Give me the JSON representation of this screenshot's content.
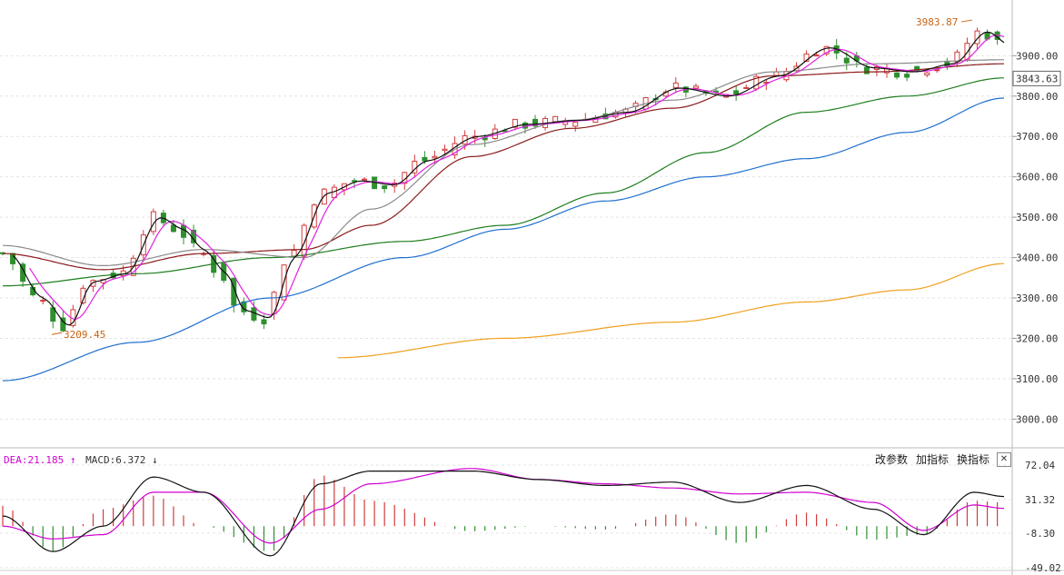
{
  "main": {
    "ylim": [
      2940,
      4020
    ],
    "yticks": [
      "3900.00",
      "3800.00",
      "3700.00",
      "3600.00",
      "3500.00",
      "3400.00",
      "3300.00",
      "3200.00",
      "3100.00",
      "3000.00"
    ],
    "ytick_values": [
      3900,
      3800,
      3700,
      3600,
      3500,
      3400,
      3300,
      3200,
      3100,
      3000
    ],
    "last_price": "3843.63",
    "high_label": "3983.87",
    "low_label": "3209.45"
  },
  "indicator": {
    "dea_label": "DEA:21.185",
    "dea_arrow": "↑",
    "macd_label": "MACD:6.372",
    "macd_arrow": "↓",
    "buttons": [
      "改参数",
      "加指标",
      "换指标"
    ],
    "close_symbol": "✕",
    "yticks": [
      "72.04",
      "31.32",
      "-8.30",
      "-49.02"
    ],
    "ytick_values": [
      72.04,
      31.32,
      -8.3,
      -49.02
    ]
  },
  "colors": {
    "up": "#d23c3c",
    "down": "#2f8f2f",
    "ma5": "#111111",
    "ma10": "#e020e0",
    "ma20": "#8a8a8a",
    "ma30": "#8b1a1a",
    "ma60": "#1e7e1e",
    "ma120": "#1f6fcf",
    "ma250": "#f0a020",
    "annotation": "#c86414",
    "dea": "#d000d0",
    "macd_text": "#333333"
  },
  "chart_data": {
    "type": "candlestick",
    "title": "",
    "y_axis_range": [
      2940,
      4020
    ],
    "macd_axis_range": [
      -49.02,
      72.04
    ],
    "key_levels": {
      "high": 3983.87,
      "low": 3209.45,
      "last": 3843.63
    },
    "ma_anchors": {
      "ma60": [
        [
          0,
          3330
        ],
        [
          40,
          3360
        ],
        [
          80,
          3400
        ],
        [
          120,
          3440
        ],
        [
          150,
          3480
        ],
        [
          180,
          3560
        ],
        [
          210,
          3660
        ],
        [
          240,
          3760
        ],
        [
          270,
          3800
        ],
        [
          299,
          3845
        ]
      ],
      "ma120": [
        [
          0,
          3095
        ],
        [
          40,
          3190
        ],
        [
          80,
          3300
        ],
        [
          120,
          3400
        ],
        [
          150,
          3470
        ],
        [
          180,
          3540
        ],
        [
          210,
          3600
        ],
        [
          240,
          3645
        ],
        [
          270,
          3710
        ],
        [
          299,
          3795
        ]
      ],
      "ma250": [
        [
          100,
          3152
        ],
        [
          150,
          3200
        ],
        [
          200,
          3240
        ],
        [
          240,
          3290
        ],
        [
          270,
          3320
        ],
        [
          299,
          3385
        ]
      ],
      "ma20": [
        [
          0,
          3430
        ],
        [
          30,
          3380
        ],
        [
          60,
          3420
        ],
        [
          90,
          3400
        ],
        [
          110,
          3520
        ],
        [
          140,
          3680
        ],
        [
          170,
          3740
        ],
        [
          200,
          3790
        ],
        [
          230,
          3860
        ],
        [
          260,
          3880
        ],
        [
          299,
          3890
        ]
      ],
      "ma30": [
        [
          0,
          3410
        ],
        [
          30,
          3370
        ],
        [
          60,
          3410
        ],
        [
          90,
          3420
        ],
        [
          110,
          3480
        ],
        [
          140,
          3650
        ],
        [
          170,
          3720
        ],
        [
          200,
          3770
        ],
        [
          230,
          3850
        ],
        [
          260,
          3860
        ],
        [
          299,
          3880
        ]
      ]
    },
    "macd_anchors": {
      "dif": [
        [
          0,
          12
        ],
        [
          15,
          -30
        ],
        [
          30,
          0
        ],
        [
          45,
          58
        ],
        [
          60,
          40
        ],
        [
          80,
          -35
        ],
        [
          95,
          50
        ],
        [
          110,
          65
        ],
        [
          140,
          65
        ],
        [
          160,
          55
        ],
        [
          180,
          48
        ],
        [
          200,
          52
        ],
        [
          220,
          28
        ],
        [
          240,
          48
        ],
        [
          260,
          20
        ],
        [
          275,
          -10
        ],
        [
          290,
          40
        ],
        [
          299,
          35
        ]
      ],
      "dea": [
        [
          0,
          0
        ],
        [
          15,
          -15
        ],
        [
          30,
          -10
        ],
        [
          45,
          40
        ],
        [
          60,
          40
        ],
        [
          80,
          -20
        ],
        [
          95,
          20
        ],
        [
          110,
          50
        ],
        [
          140,
          68
        ],
        [
          160,
          55
        ],
        [
          180,
          50
        ],
        [
          200,
          45
        ],
        [
          220,
          38
        ],
        [
          240,
          40
        ],
        [
          260,
          28
        ],
        [
          275,
          -5
        ],
        [
          290,
          25
        ],
        [
          299,
          21
        ]
      ]
    }
  }
}
